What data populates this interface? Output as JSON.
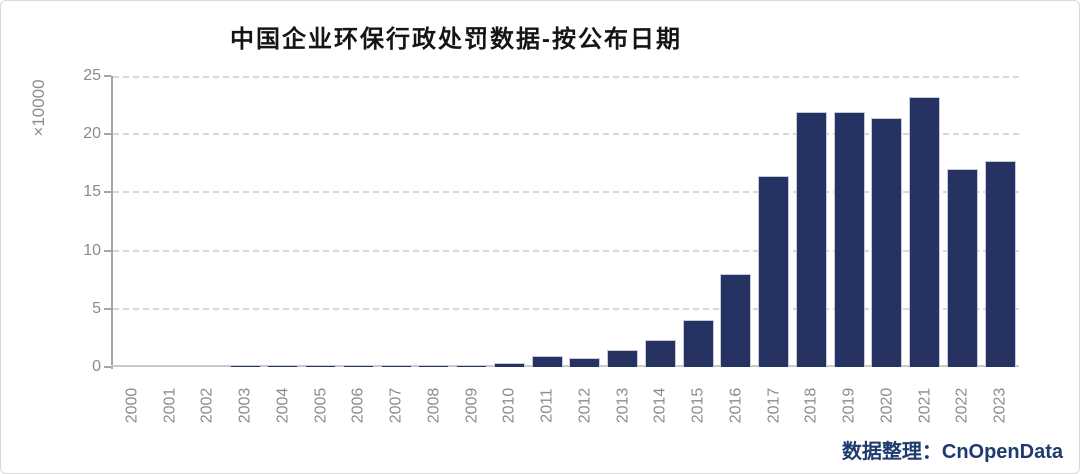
{
  "header": {
    "title": "中国企业环保行政处罚数据-按公布日期"
  },
  "footer": {
    "label": "数据整理：",
    "source": "CnOpenData"
  },
  "colors": {
    "bar_fill": "#263262",
    "bar_edge": "#c5cad7",
    "axis": "#a5a5a5",
    "baseline": "#c9c9c9",
    "gridline": "#d8d8d8",
    "tick_text": "#8c8c8c",
    "title_text": "#151515",
    "footer_text": "#1e3a6e",
    "frame_border": "#d9d9d9"
  },
  "chart_data": {
    "type": "bar",
    "title": "中国企业环保行政处罚数据-按公布日期",
    "xlabel": "",
    "ylabel": "×10000",
    "ylim": [
      0,
      25
    ],
    "yticks": [
      0,
      5,
      10,
      15,
      20,
      25
    ],
    "grid": "dashed-horizontal",
    "legend": "none",
    "categories": [
      "2000",
      "2001",
      "2002",
      "2003",
      "2004",
      "2005",
      "2006",
      "2007",
      "2008",
      "2009",
      "2010",
      "2011",
      "2012",
      "2013",
      "2014",
      "2015",
      "2016",
      "2017",
      "2018",
      "2019",
      "2020",
      "2021",
      "2022",
      "2023"
    ],
    "values": [
      0,
      0,
      0,
      0.18,
      0.18,
      0.18,
      0.18,
      0.18,
      0.18,
      0.2,
      0.35,
      0.95,
      0.75,
      1.45,
      2.3,
      4.0,
      8.0,
      16.4,
      21.9,
      21.9,
      21.4,
      23.2,
      17.0,
      17.7
    ],
    "source_note": "数据整理：CnOpenData"
  }
}
